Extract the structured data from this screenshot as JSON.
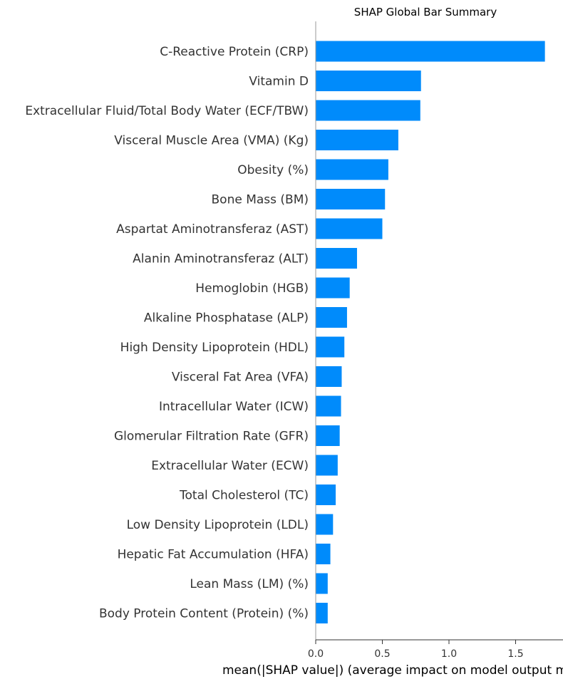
{
  "chart_data": {
    "type": "bar",
    "orientation": "horizontal",
    "title": "SHAP Global Bar Summary",
    "xlabel": "mean(|SHAP value|) (average impact on model output magnitude)",
    "ylabel": "",
    "xlim": [
      0,
      1.75
    ],
    "xticks": [
      0.0,
      0.5,
      1.0,
      1.5
    ],
    "xtick_labels": [
      "0.0",
      "0.5",
      "1.0",
      "1.5"
    ],
    "grid": false,
    "bar_color": "#008bfb",
    "categories": [
      "C-Reactive Protein (CRP)",
      "Vitamin D",
      "Extracellular Fluid/Total Body Water (ECF/TBW)",
      "Visceral Muscle Area (VMA) (Kg)",
      "Obesity (%)",
      "Bone Mass (BM)",
      "Aspartat Aminotransferaz (AST)",
      "Alanin Aminotransferaz (ALT)",
      "Hemoglobin (HGB)",
      "Alkaline Phosphatase (ALP)",
      "High Density Lipoprotein (HDL)",
      "Visceral Fat Area (VFA)",
      "Intracellular Water (ICW)",
      "Glomerular Filtration Rate (GFR)",
      "Extracellular Water (ECW)",
      "Total Cholesterol (TC)",
      "Low Density Lipoprotein (LDL)",
      "Hepatic Fat Accumulation (HFA)",
      "Lean Mass (LM) (%)",
      "Body Protein Content (Protein) (%)"
    ],
    "values": [
      1.72,
      0.79,
      0.785,
      0.62,
      0.545,
      0.52,
      0.5,
      0.31,
      0.255,
      0.235,
      0.215,
      0.195,
      0.19,
      0.18,
      0.165,
      0.15,
      0.13,
      0.11,
      0.09,
      0.09
    ]
  }
}
